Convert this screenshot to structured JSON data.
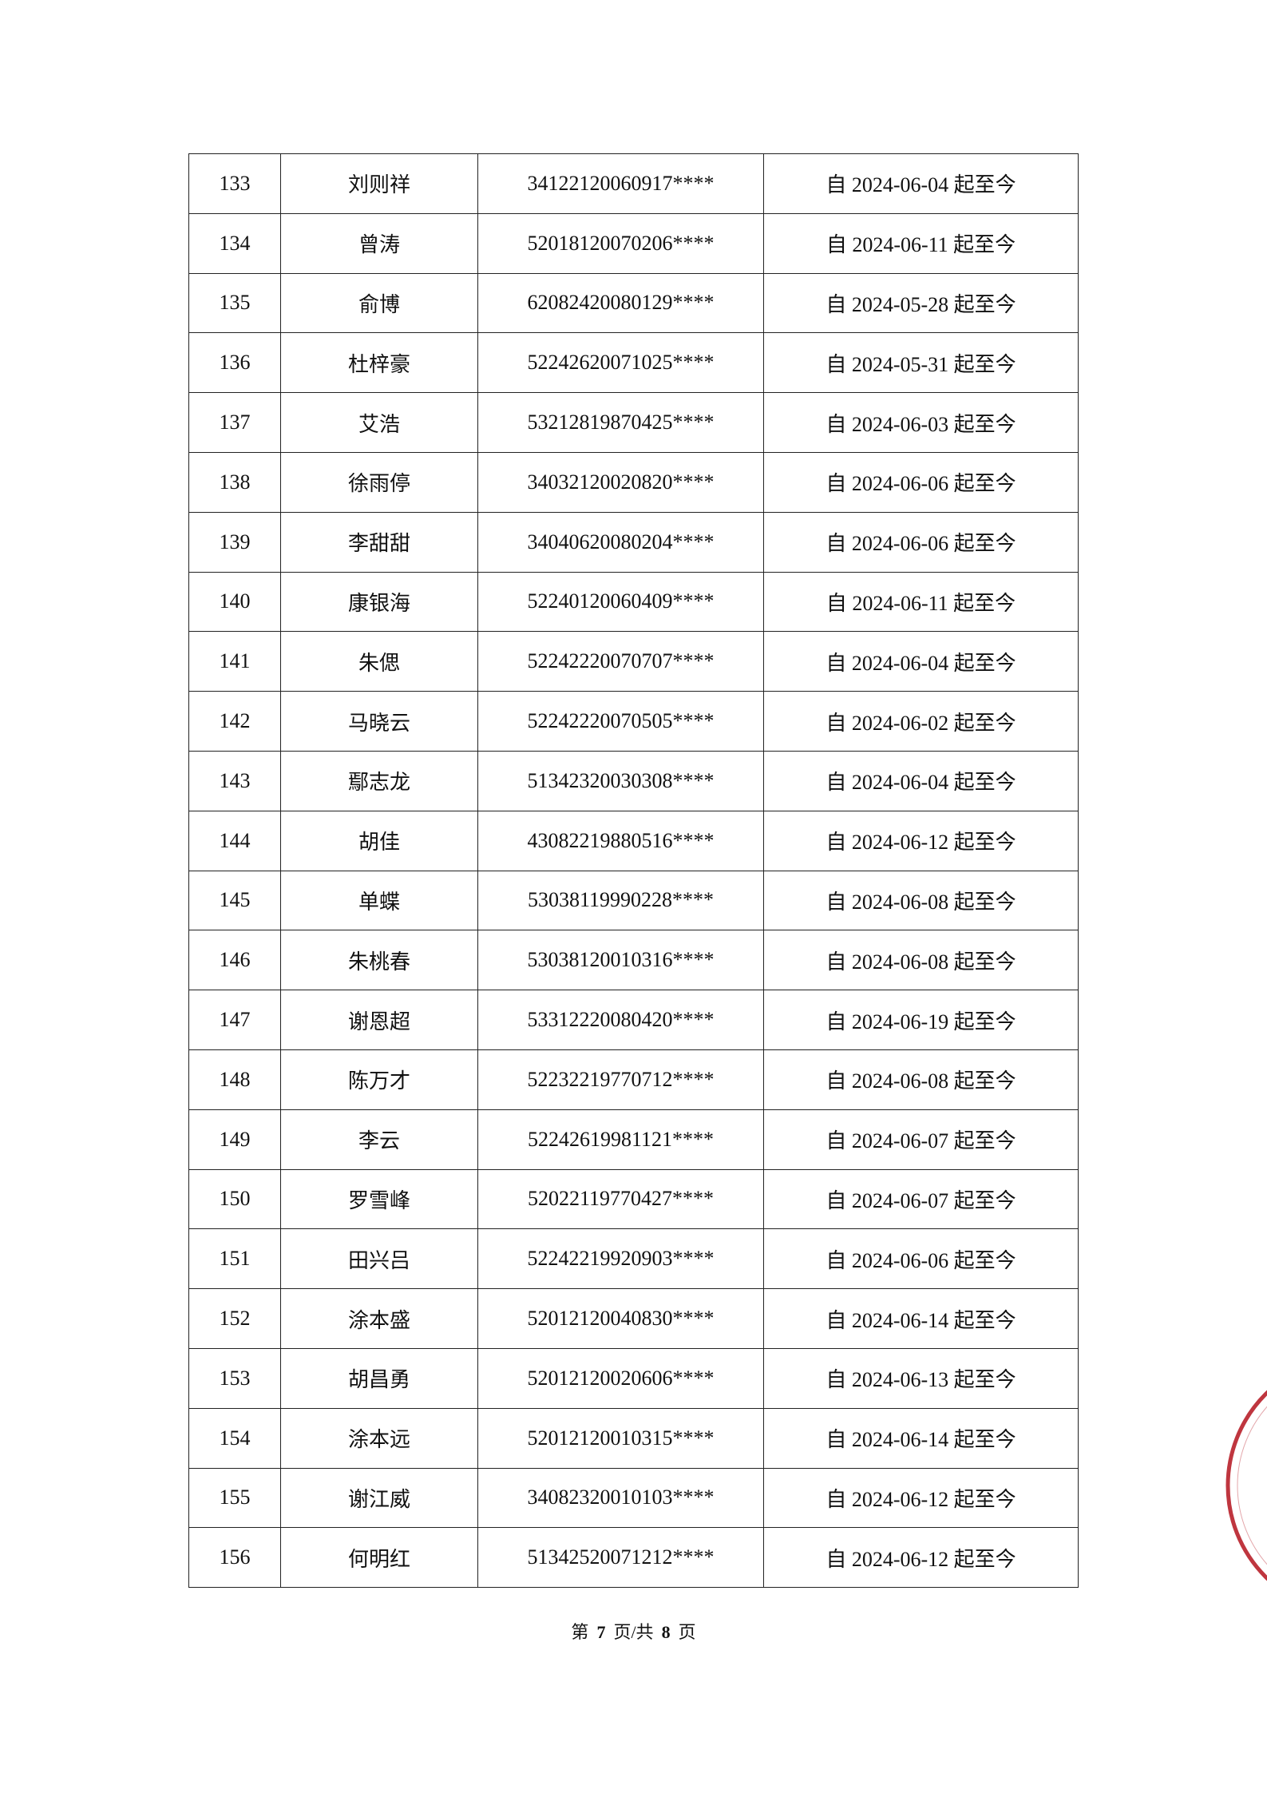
{
  "rows": [
    {
      "no": "133",
      "name": "刘则祥",
      "id": "34122120060917****",
      "period": "自 2024-06-04 起至今"
    },
    {
      "no": "134",
      "name": "曾涛",
      "id": "52018120070206****",
      "period": "自 2024-06-11 起至今"
    },
    {
      "no": "135",
      "name": "俞博",
      "id": "62082420080129****",
      "period": "自 2024-05-28 起至今"
    },
    {
      "no": "136",
      "name": "杜梓豪",
      "id": "52242620071025****",
      "period": "自 2024-05-31 起至今"
    },
    {
      "no": "137",
      "name": "艾浩",
      "id": "53212819870425****",
      "period": "自 2024-06-03 起至今"
    },
    {
      "no": "138",
      "name": "徐雨停",
      "id": "34032120020820****",
      "period": "自 2024-06-06 起至今"
    },
    {
      "no": "139",
      "name": "李甜甜",
      "id": "34040620080204****",
      "period": "自 2024-06-06 起至今"
    },
    {
      "no": "140",
      "name": "康银海",
      "id": "52240120060409****",
      "period": "自 2024-06-11 起至今"
    },
    {
      "no": "141",
      "name": "朱偲",
      "id": "52242220070707****",
      "period": "自 2024-06-04 起至今"
    },
    {
      "no": "142",
      "name": "马晓云",
      "id": "52242220070505****",
      "period": "自 2024-06-02 起至今"
    },
    {
      "no": "143",
      "name": "鄢志龙",
      "id": "51342320030308****",
      "period": "自 2024-06-04 起至今"
    },
    {
      "no": "144",
      "name": "胡佳",
      "id": "43082219880516****",
      "period": "自 2024-06-12 起至今"
    },
    {
      "no": "145",
      "name": "单蝶",
      "id": "53038119990228****",
      "period": "自 2024-06-08 起至今"
    },
    {
      "no": "146",
      "name": "朱桃春",
      "id": "53038120010316****",
      "period": "自 2024-06-08 起至今"
    },
    {
      "no": "147",
      "name": "谢恩超",
      "id": "53312220080420****",
      "period": "自 2024-06-19 起至今"
    },
    {
      "no": "148",
      "name": "陈万才",
      "id": "52232219770712****",
      "period": "自 2024-06-08 起至今"
    },
    {
      "no": "149",
      "name": "李云",
      "id": "52242619981121****",
      "period": "自 2024-06-07 起至今"
    },
    {
      "no": "150",
      "name": "罗雪峰",
      "id": "52022119770427****",
      "period": "自 2024-06-07 起至今"
    },
    {
      "no": "151",
      "name": "田兴吕",
      "id": "52242219920903****",
      "period": "自 2024-06-06 起至今"
    },
    {
      "no": "152",
      "name": "涂本盛",
      "id": "52012120040830****",
      "period": "自 2024-06-14 起至今"
    },
    {
      "no": "153",
      "name": "胡昌勇",
      "id": "52012120020606****",
      "period": "自 2024-06-13 起至今"
    },
    {
      "no": "154",
      "name": "涂本远",
      "id": "52012120010315****",
      "period": "自 2024-06-14 起至今"
    },
    {
      "no": "155",
      "name": "谢江威",
      "id": "34082320010103****",
      "period": "自 2024-06-12 起至今"
    },
    {
      "no": "156",
      "name": "何明红",
      "id": "51342520071212****",
      "period": "自 2024-06-12 起至今"
    }
  ],
  "footer": {
    "prefix": "第",
    "current": "7",
    "middle": "页/共",
    "total": "8",
    "suffix": "页"
  },
  "seal": {
    "color": "#b8202a",
    "icon": "official-seal-stamp"
  }
}
